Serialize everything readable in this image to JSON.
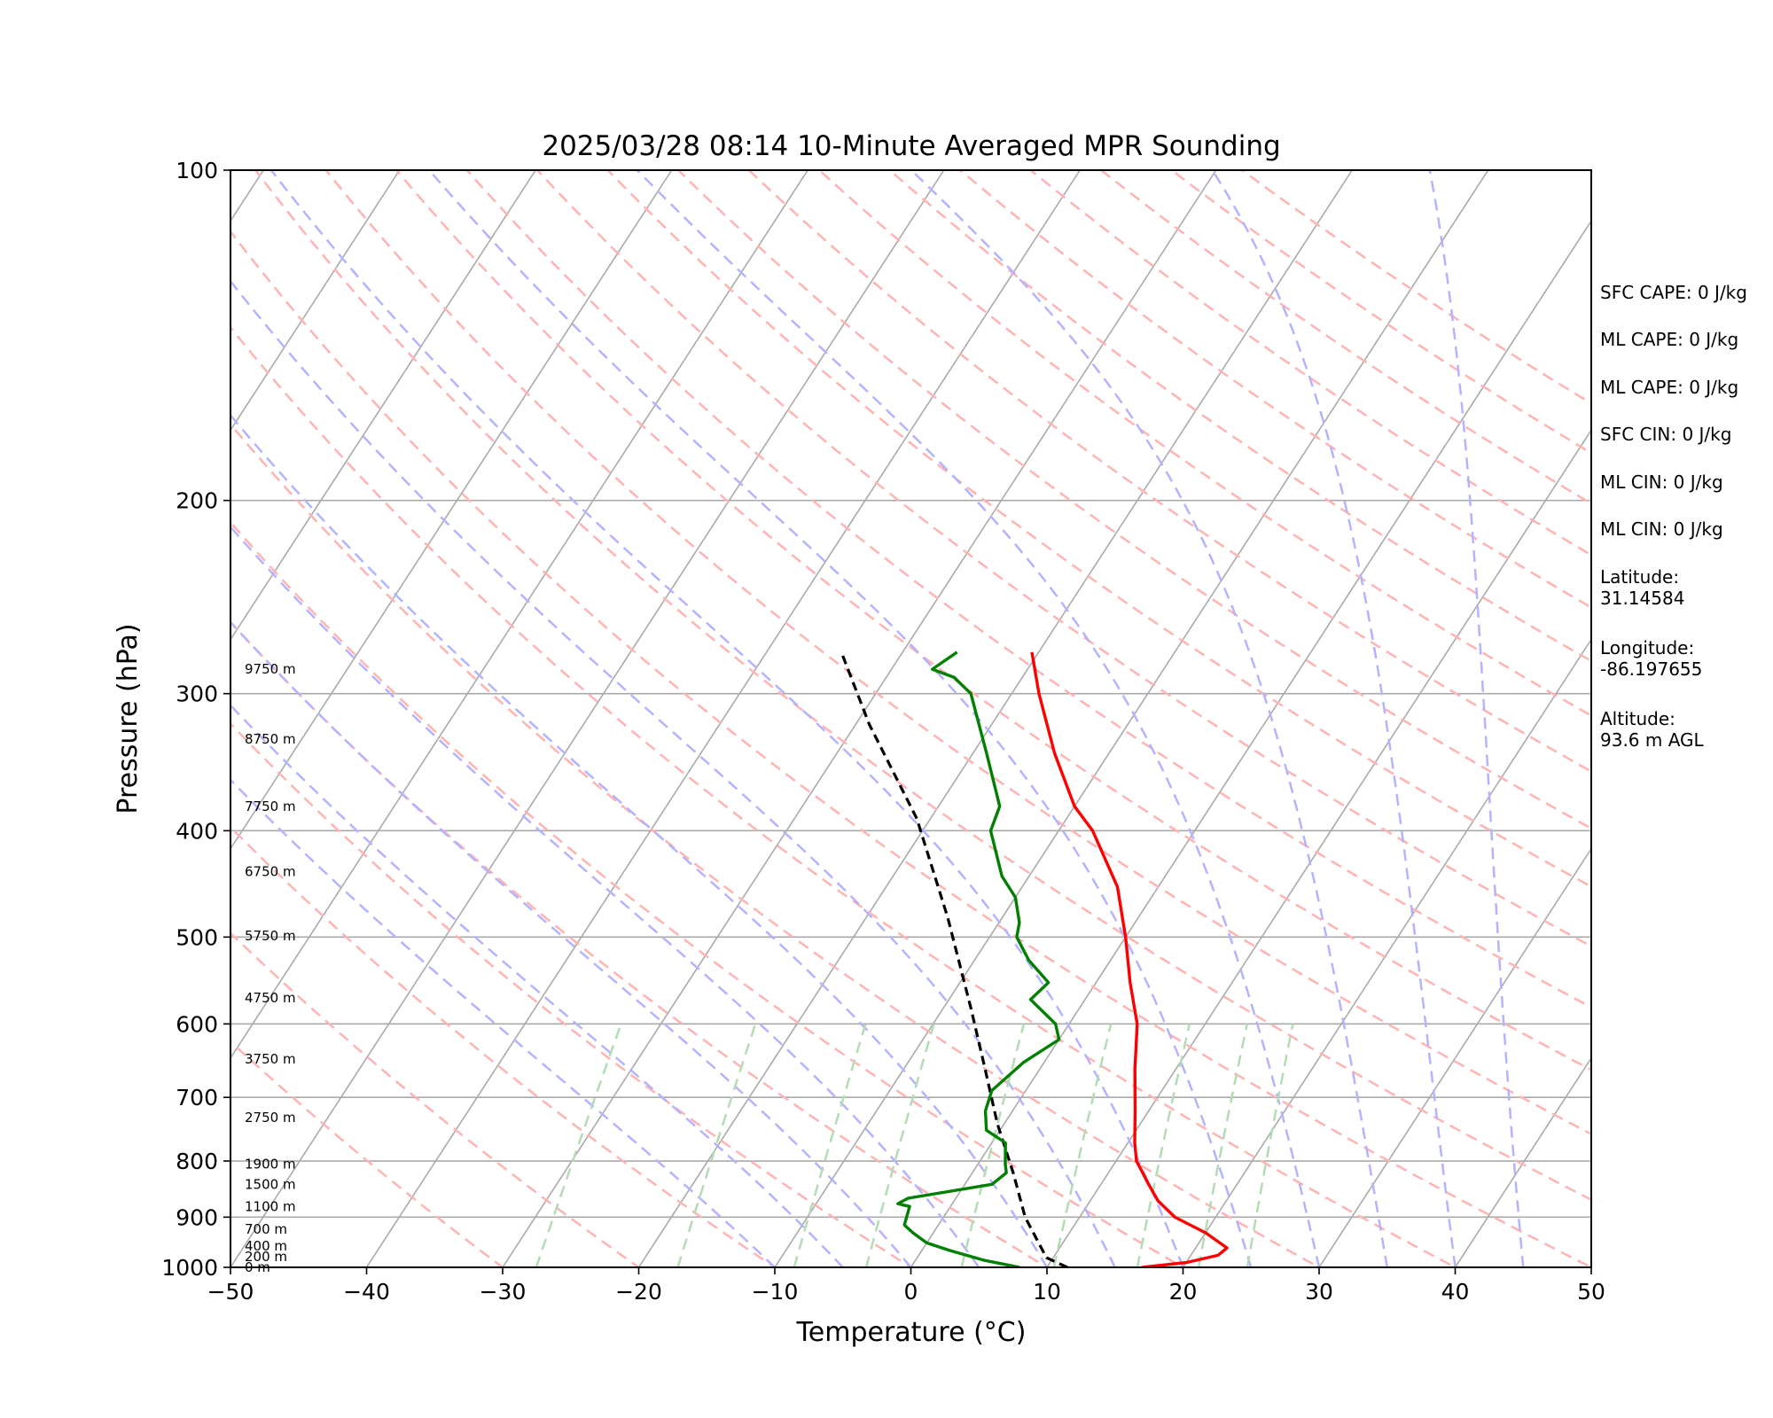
{
  "chart_data": {
    "type": "skew-t",
    "title": "2025/03/28 08:14 10-Minute Averaged MPR Sounding",
    "xlabel": "Temperature (°C)",
    "ylabel": "Pressure (hPa)",
    "xlim": [
      -50,
      50
    ],
    "ylim": [
      1000,
      100
    ],
    "yscale": "log",
    "x_ticks": [
      -50,
      -40,
      -30,
      -20,
      -10,
      0,
      10,
      20,
      30,
      40,
      50
    ],
    "x_tick_labels": [
      "−50",
      "−40",
      "−30",
      "−20",
      "−10",
      "0",
      "10",
      "20",
      "30",
      "40",
      "50"
    ],
    "y_ticks": [
      1000,
      900,
      800,
      700,
      600,
      500,
      400,
      300,
      200,
      100
    ],
    "y_tick_labels": [
      "1000",
      "900",
      "800",
      "700",
      "600",
      "500",
      "400",
      "300",
      "200",
      "100"
    ],
    "grid": true,
    "temperature": {
      "color": "#ff0000",
      "points": [
        [
          17.0,
          1000
        ],
        [
          20.0,
          990
        ],
        [
          22.0,
          975
        ],
        [
          22.3,
          960
        ],
        [
          20.0,
          930
        ],
        [
          17.0,
          900
        ],
        [
          15.0,
          870
        ],
        [
          13.5,
          840
        ],
        [
          11.5,
          800
        ],
        [
          10.5,
          770
        ],
        [
          9.0,
          720
        ],
        [
          7.0,
          660
        ],
        [
          5.0,
          600
        ],
        [
          2.5,
          550
        ],
        [
          0.0,
          500
        ],
        [
          -3.0,
          450
        ],
        [
          -7.5,
          400
        ],
        [
          -10.0,
          380
        ],
        [
          -14.0,
          340
        ],
        [
          -18.0,
          300
        ],
        [
          -20.5,
          275
        ]
      ]
    },
    "dewpoint": {
      "color": "#008000",
      "points": [
        [
          8.0,
          1000
        ],
        [
          5.0,
          985
        ],
        [
          2.0,
          965
        ],
        [
          0.0,
          950
        ],
        [
          -1.5,
          930
        ],
        [
          -2.5,
          915
        ],
        [
          -3.0,
          880
        ],
        [
          -4.0,
          875
        ],
        [
          -3.5,
          865
        ],
        [
          2.0,
          840
        ],
        [
          2.5,
          820
        ],
        [
          2.0,
          805
        ],
        [
          1.0,
          770
        ],
        [
          -1.0,
          750
        ],
        [
          -2.0,
          720
        ],
        [
          -2.5,
          690
        ],
        [
          -1.5,
          650
        ],
        [
          0.0,
          620
        ],
        [
          -1.0,
          600
        ],
        [
          -4.0,
          570
        ],
        [
          -3.5,
          550
        ],
        [
          -6.0,
          525
        ],
        [
          -8.0,
          500
        ],
        [
          -8.5,
          485
        ],
        [
          -10.0,
          460
        ],
        [
          -12.0,
          440
        ],
        [
          -15.0,
          400
        ],
        [
          -15.5,
          380
        ],
        [
          -19.0,
          340
        ],
        [
          -23.0,
          300
        ],
        [
          -25.0,
          290
        ],
        [
          -27.0,
          285
        ],
        [
          -26.0,
          275
        ]
      ]
    },
    "parcel": {
      "color": "#000000",
      "dash": "dashed",
      "points": [
        [
          11.5,
          1000
        ],
        [
          9.5,
          980
        ],
        [
          6.0,
          900
        ],
        [
          3.0,
          820
        ],
        [
          -0.5,
          740
        ],
        [
          -4.0,
          660
        ],
        [
          -8.0,
          580
        ],
        [
          -14.0,
          480
        ],
        [
          -21.0,
          390
        ],
        [
          -29.0,
          320
        ],
        [
          -34.5,
          275
        ]
      ]
    },
    "height_labels": [
      {
        "label": "0 m",
        "p": 1000
      },
      {
        "label": "200 m",
        "p": 978
      },
      {
        "label": "400 m",
        "p": 956
      },
      {
        "label": "700 m",
        "p": 923
      },
      {
        "label": "1100 m",
        "p": 880
      },
      {
        "label": "1500 m",
        "p": 840
      },
      {
        "label": "1900 m",
        "p": 805
      },
      {
        "label": "2750 m",
        "p": 730
      },
      {
        "label": "3750 m",
        "p": 646
      },
      {
        "label": "4750 m",
        "p": 568
      },
      {
        "label": "5750 m",
        "p": 499
      },
      {
        "label": "6750 m",
        "p": 436
      },
      {
        "label": "7750 m",
        "p": 380
      },
      {
        "label": "8750 m",
        "p": 330
      },
      {
        "label": "9750 m",
        "p": 285
      }
    ],
    "isotherms": [
      -150,
      -140,
      -130,
      -120,
      -110,
      -100,
      -90,
      -80,
      -70,
      -60,
      -50,
      -40,
      -30,
      -20,
      -10,
      0,
      10,
      20,
      30,
      40,
      50
    ],
    "dry_adiabats_theta_c": [
      -30,
      -20,
      -10,
      0,
      10,
      20,
      30,
      40,
      50,
      60,
      70,
      80,
      90,
      100,
      110,
      120,
      130,
      140,
      150,
      160,
      170,
      180,
      190,
      200
    ],
    "moist_adiabats_t1000_c": [
      -10,
      -5,
      0,
      5,
      10,
      15,
      20,
      25,
      30,
      35,
      40,
      45
    ],
    "mixing_ratio_lines_gkg": [
      0.4,
      1,
      2,
      3,
      5,
      8,
      12,
      16,
      20
    ]
  },
  "info": {
    "sfc_cape": "SFC CAPE: 0 J/kg",
    "ml_cape_1": "ML CAPE: 0 J/kg",
    "ml_cape_2": "ML CAPE: 0 J/kg",
    "sfc_cin": "SFC CIN: 0 J/kg",
    "ml_cin_1": "ML CIN: 0 J/kg",
    "ml_cin_2": "ML CIN: 0 J/kg",
    "latitude_label": "Latitude:",
    "latitude_value": "31.14584",
    "longitude_label": "Longitude:",
    "longitude_value": "-86.197655",
    "altitude_label": "Altitude:",
    "altitude_value": "93.6 m AGL"
  },
  "colors": {
    "isotherm": "#aaaaaa",
    "isobar": "#aaaaaa",
    "dry_adiabat": "#ffb3b3",
    "moist_adiabat": "#b3b3ff",
    "mixing_ratio": "#b3dcb3"
  }
}
